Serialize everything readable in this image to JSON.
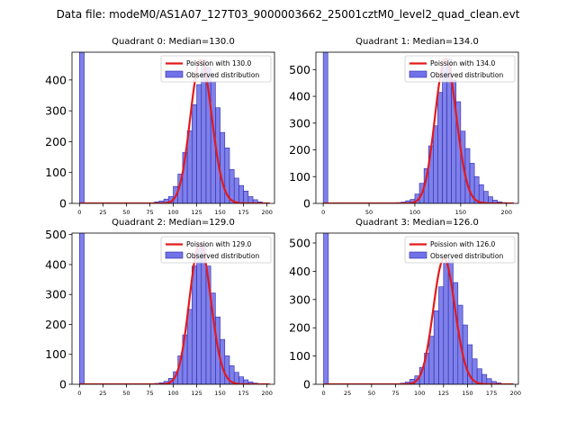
{
  "chart_data": {
    "type": "histogram-grid",
    "suptitle": "Data file: modeM0/AS1A07_127T03_9000003662_25001cztM0_level2_quad_clean.evt",
    "legend_position": "upper-right",
    "colors": {
      "bars": "#7272e8",
      "bar_edge": "#2a2ab0",
      "poisson": "#e31a1c"
    },
    "panels": [
      {
        "title": "Quadrant 0: Median=130.0",
        "median": 130.0,
        "xlim": [
          -8,
          208
        ],
        "ylim": [
          0,
          490
        ],
        "yticks": [
          0,
          100,
          200,
          300,
          400
        ],
        "xticks": [
          0,
          25,
          50,
          75,
          100,
          125,
          150,
          175,
          200
        ],
        "legend": [
          "Poission with 130.0",
          "Observed distribution"
        ],
        "bins": [
          [
            0,
            490
          ],
          [
            80,
            5
          ],
          [
            85,
            8
          ],
          [
            90,
            14
          ],
          [
            95,
            22
          ],
          [
            100,
            55
          ],
          [
            105,
            95
          ],
          [
            110,
            165
          ],
          [
            115,
            235
          ],
          [
            120,
            320
          ],
          [
            125,
            385
          ],
          [
            130,
            465
          ],
          [
            135,
            440
          ],
          [
            140,
            395
          ],
          [
            145,
            310
          ],
          [
            150,
            230
          ],
          [
            155,
            180
          ],
          [
            160,
            110
          ],
          [
            165,
            82
          ],
          [
            170,
            58
          ],
          [
            175,
            40
          ],
          [
            180,
            22
          ],
          [
            185,
            12
          ],
          [
            190,
            5
          ],
          [
            195,
            2
          ]
        ]
      },
      {
        "title": "Quadrant 1: Median=134.0",
        "median": 134.0,
        "xlim": [
          -8,
          213
        ],
        "ylim": [
          0,
          565
        ],
        "yticks": [
          0,
          100,
          200,
          300,
          400,
          500
        ],
        "xticks": [
          0,
          50,
          100,
          150,
          200
        ],
        "legend": [
          "Poission with 134.0",
          "Observed distribution"
        ],
        "bins": [
          [
            0,
            565
          ],
          [
            80,
            3
          ],
          [
            85,
            5
          ],
          [
            90,
            10
          ],
          [
            95,
            15
          ],
          [
            100,
            35
          ],
          [
            105,
            75
          ],
          [
            110,
            130
          ],
          [
            115,
            215
          ],
          [
            120,
            290
          ],
          [
            125,
            415
          ],
          [
            130,
            510
          ],
          [
            135,
            540
          ],
          [
            140,
            460
          ],
          [
            145,
            380
          ],
          [
            150,
            270
          ],
          [
            155,
            205
          ],
          [
            160,
            150
          ],
          [
            165,
            100
          ],
          [
            170,
            70
          ],
          [
            175,
            45
          ],
          [
            180,
            25
          ],
          [
            185,
            12
          ],
          [
            190,
            6
          ],
          [
            195,
            3
          ],
          [
            200,
            1
          ]
        ]
      },
      {
        "title": "Quadrant 2: Median=129.0",
        "median": 129.0,
        "xlim": [
          -8,
          208
        ],
        "ylim": [
          0,
          505
        ],
        "yticks": [
          0,
          100,
          200,
          300,
          400,
          500
        ],
        "xticks": [
          0,
          25,
          50,
          75,
          100,
          125,
          150,
          175,
          200
        ],
        "legend": [
          "Poission with 129.0",
          "Observed distribution"
        ],
        "bins": [
          [
            0,
            505
          ],
          [
            80,
            3
          ],
          [
            85,
            5
          ],
          [
            90,
            10
          ],
          [
            95,
            20
          ],
          [
            100,
            42
          ],
          [
            105,
            95
          ],
          [
            110,
            165
          ],
          [
            115,
            250
          ],
          [
            120,
            395
          ],
          [
            125,
            460
          ],
          [
            130,
            470
          ],
          [
            135,
            395
          ],
          [
            140,
            305
          ],
          [
            145,
            225
          ],
          [
            150,
            150
          ],
          [
            155,
            95
          ],
          [
            160,
            62
          ],
          [
            165,
            40
          ],
          [
            170,
            25
          ],
          [
            175,
            15
          ],
          [
            180,
            8
          ],
          [
            185,
            4
          ],
          [
            190,
            2
          ]
        ]
      },
      {
        "title": "Quadrant 3: Median=126.0",
        "median": 126.0,
        "xlim": [
          -8,
          203
        ],
        "ylim": [
          0,
          535
        ],
        "yticks": [
          0,
          100,
          200,
          300,
          400,
          500
        ],
        "xticks": [
          0,
          25,
          50,
          75,
          100,
          125,
          150,
          175,
          200
        ],
        "legend": [
          "Poission with 126.0",
          "Observed distribution"
        ],
        "bins": [
          [
            0,
            535
          ],
          [
            80,
            4
          ],
          [
            85,
            8
          ],
          [
            90,
            18
          ],
          [
            95,
            30
          ],
          [
            100,
            60
          ],
          [
            105,
            110
          ],
          [
            110,
            170
          ],
          [
            115,
            260
          ],
          [
            120,
            345
          ],
          [
            125,
            430
          ],
          [
            130,
            445
          ],
          [
            135,
            360
          ],
          [
            140,
            280
          ],
          [
            145,
            210
          ],
          [
            150,
            140
          ],
          [
            155,
            90
          ],
          [
            160,
            55
          ],
          [
            165,
            35
          ],
          [
            170,
            20
          ],
          [
            175,
            10
          ],
          [
            180,
            5
          ],
          [
            185,
            2
          ]
        ]
      }
    ]
  }
}
